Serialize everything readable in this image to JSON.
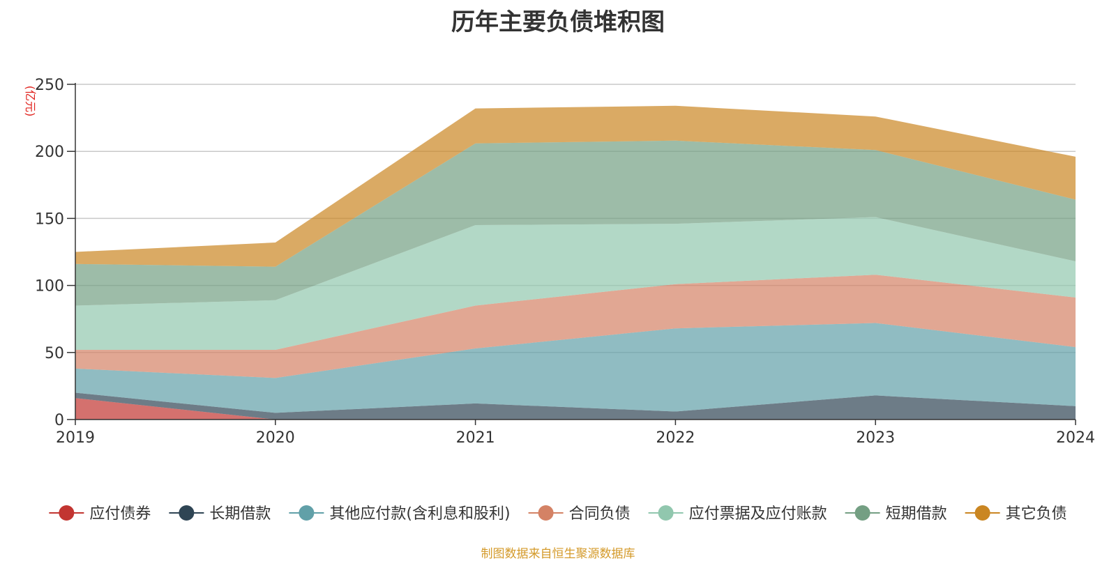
{
  "chart_data": {
    "type": "area",
    "title": "历年主要负债堆积图",
    "unit_label": "(亿元)",
    "x": [
      "2019",
      "2020",
      "2021",
      "2022",
      "2023",
      "2024"
    ],
    "ylim": [
      0,
      250
    ],
    "yticks": [
      "0",
      "50",
      "100",
      "150",
      "200",
      "250"
    ],
    "stacked": true,
    "grid": true,
    "legend_position": "bottom",
    "series": [
      {
        "name": "应付债券",
        "color": "#c23531",
        "values": [
          16,
          0,
          0,
          0,
          0,
          0
        ]
      },
      {
        "name": "长期借款",
        "color": "#2f4554",
        "values": [
          4,
          5,
          12,
          6,
          18,
          10
        ]
      },
      {
        "name": "其他应付款(含利息和股利)",
        "color": "#61a0a8",
        "values": [
          18,
          26,
          41,
          62,
          54,
          44
        ]
      },
      {
        "name": "合同负债",
        "color": "#d48265",
        "values": [
          14,
          21,
          32,
          33,
          36,
          37
        ]
      },
      {
        "name": "应付票据及应付账款",
        "color": "#91c7ae",
        "values": [
          33,
          37,
          60,
          45,
          43,
          27
        ]
      },
      {
        "name": "短期借款",
        "color": "#749f83",
        "values": [
          31,
          25,
          61,
          62,
          50,
          46
        ]
      },
      {
        "name": "其它负债",
        "color": "#ca8622",
        "values": [
          9,
          18,
          26,
          26,
          25,
          32
        ]
      }
    ]
  },
  "source_note": "制图数据来自恒生聚源数据库"
}
